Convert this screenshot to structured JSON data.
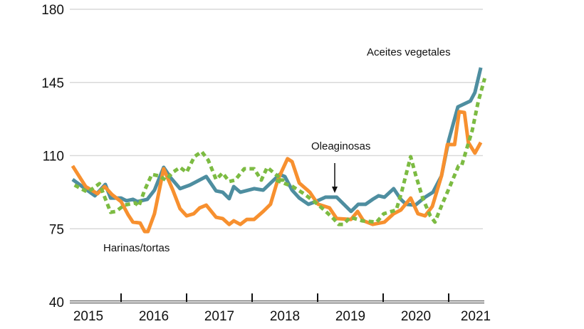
{
  "chart_data": {
    "type": "line",
    "title": "",
    "xlabel": "",
    "ylabel": "",
    "ylim": [
      40,
      180
    ],
    "xlim": [
      2015,
      2021.55
    ],
    "y_ticks": [
      40,
      75,
      110,
      145,
      180
    ],
    "x_tick_labels": [
      "2015",
      "2016",
      "2017",
      "2018",
      "2019",
      "2020",
      "2021"
    ],
    "grid": "horizontal",
    "annotations": {
      "aceites": "Aceites vegetales",
      "oleaginosas": "Oleaginosas",
      "harinas": "Harinas/tortas"
    },
    "series": [
      {
        "name": "Oleaginosas",
        "color": "#4e8ea0",
        "style": "solid",
        "points": [
          [
            2015.26,
            98.6
          ],
          [
            2015.6,
            90.8
          ],
          [
            2015.76,
            96.2
          ],
          [
            2015.84,
            89.7
          ],
          [
            2016.0,
            89.7
          ],
          [
            2016.08,
            88.4
          ],
          [
            2016.18,
            89.1
          ],
          [
            2016.25,
            88.0
          ],
          [
            2016.4,
            89.1
          ],
          [
            2016.51,
            93.5
          ],
          [
            2016.65,
            104.4
          ],
          [
            2016.76,
            99.3
          ],
          [
            2016.9,
            94.2
          ],
          [
            2017.05,
            95.9
          ],
          [
            2017.3,
            100.0
          ],
          [
            2017.45,
            93.1
          ],
          [
            2017.55,
            92.5
          ],
          [
            2017.65,
            89.4
          ],
          [
            2017.72,
            95.2
          ],
          [
            2017.82,
            92.5
          ],
          [
            2018.03,
            94.2
          ],
          [
            2018.17,
            93.5
          ],
          [
            2018.42,
            101.0
          ],
          [
            2018.5,
            100.0
          ],
          [
            2018.61,
            93.5
          ],
          [
            2018.72,
            89.7
          ],
          [
            2018.86,
            86.7
          ],
          [
            2018.97,
            88.0
          ],
          [
            2019.12,
            90.1
          ],
          [
            2019.29,
            90.1
          ],
          [
            2019.51,
            83.3
          ],
          [
            2019.62,
            86.7
          ],
          [
            2019.73,
            86.7
          ],
          [
            2019.84,
            89.1
          ],
          [
            2019.93,
            90.8
          ],
          [
            2020.02,
            90.1
          ],
          [
            2020.16,
            94.2
          ],
          [
            2020.27,
            89.1
          ],
          [
            2020.35,
            86.7
          ],
          [
            2020.49,
            86.3
          ],
          [
            2020.64,
            90.1
          ],
          [
            2020.76,
            92.5
          ],
          [
            2020.89,
            100.3
          ],
          [
            2021.0,
            117.3
          ],
          [
            2021.14,
            133.3
          ],
          [
            2021.33,
            136.1
          ],
          [
            2021.4,
            140.2
          ],
          [
            2021.49,
            152.1
          ]
        ]
      },
      {
        "name": "Harinas/tortas",
        "color": "#f7902f",
        "style": "solid",
        "points": [
          [
            2015.26,
            105.1
          ],
          [
            2015.46,
            95.2
          ],
          [
            2015.64,
            91.8
          ],
          [
            2015.75,
            95.2
          ],
          [
            2015.86,
            91.4
          ],
          [
            2016.0,
            88.0
          ],
          [
            2016.11,
            81.6
          ],
          [
            2016.18,
            78.2
          ],
          [
            2016.29,
            77.8
          ],
          [
            2016.36,
            73.7
          ],
          [
            2016.41,
            73.7
          ],
          [
            2016.51,
            82.2
          ],
          [
            2016.65,
            103.7
          ],
          [
            2016.79,
            93.5
          ],
          [
            2016.9,
            84.6
          ],
          [
            2017.0,
            81.2
          ],
          [
            2017.11,
            82.2
          ],
          [
            2017.2,
            85.0
          ],
          [
            2017.3,
            86.3
          ],
          [
            2017.45,
            80.5
          ],
          [
            2017.55,
            79.9
          ],
          [
            2017.65,
            77.1
          ],
          [
            2017.72,
            78.8
          ],
          [
            2017.82,
            77.1
          ],
          [
            2017.92,
            79.5
          ],
          [
            2018.03,
            79.5
          ],
          [
            2018.17,
            83.3
          ],
          [
            2018.28,
            86.7
          ],
          [
            2018.39,
            98.3
          ],
          [
            2018.54,
            108.5
          ],
          [
            2018.61,
            107.1
          ],
          [
            2018.72,
            96.9
          ],
          [
            2018.88,
            92.5
          ],
          [
            2018.99,
            87.4
          ],
          [
            2019.01,
            86.7
          ],
          [
            2019.18,
            85.0
          ],
          [
            2019.29,
            79.9
          ],
          [
            2019.51,
            79.5
          ],
          [
            2019.61,
            83.3
          ],
          [
            2019.7,
            78.8
          ],
          [
            2019.84,
            77.1
          ],
          [
            2020.02,
            78.2
          ],
          [
            2020.16,
            82.2
          ],
          [
            2020.27,
            84.0
          ],
          [
            2020.42,
            89.7
          ],
          [
            2020.53,
            82.2
          ],
          [
            2020.64,
            81.2
          ],
          [
            2020.75,
            85.7
          ],
          [
            2020.89,
            100.3
          ],
          [
            2020.98,
            115.3
          ],
          [
            2021.09,
            115.3
          ],
          [
            2021.16,
            131.0
          ],
          [
            2021.24,
            130.6
          ],
          [
            2021.3,
            116.3
          ],
          [
            2021.4,
            111.2
          ],
          [
            2021.49,
            116.3
          ]
        ]
      },
      {
        "name": "Aceites vegetales",
        "color": "#7cbb42",
        "style": "dotted",
        "points": [
          [
            2015.29,
            95.9
          ],
          [
            2015.49,
            92.5
          ],
          [
            2015.67,
            96.6
          ],
          [
            2015.84,
            82.9
          ],
          [
            2015.92,
            83.3
          ],
          [
            2016.05,
            86.3
          ],
          [
            2016.22,
            87.4
          ],
          [
            2016.27,
            85.7
          ],
          [
            2016.36,
            93.5
          ],
          [
            2016.47,
            101.0
          ],
          [
            2016.58,
            100.3
          ],
          [
            2016.68,
            98.3
          ],
          [
            2016.79,
            102.0
          ],
          [
            2016.9,
            104.4
          ],
          [
            2017.0,
            102.0
          ],
          [
            2017.12,
            109.5
          ],
          [
            2017.23,
            111.9
          ],
          [
            2017.33,
            107.8
          ],
          [
            2017.45,
            98.6
          ],
          [
            2017.55,
            101.7
          ],
          [
            2017.65,
            97.6
          ],
          [
            2017.74,
            98.3
          ],
          [
            2017.88,
            103.7
          ],
          [
            2018.03,
            103.7
          ],
          [
            2018.14,
            98.3
          ],
          [
            2018.23,
            104.4
          ],
          [
            2018.36,
            101.0
          ],
          [
            2018.47,
            98.3
          ],
          [
            2018.36,
            98.3
          ],
          [
            2018.62,
            95.2
          ],
          [
            2018.79,
            91.8
          ],
          [
            2018.95,
            88.0
          ],
          [
            2019.1,
            84.0
          ],
          [
            2019.24,
            79.9
          ],
          [
            2019.32,
            77.1
          ],
          [
            2019.39,
            77.1
          ],
          [
            2019.5,
            80.5
          ],
          [
            2019.68,
            78.8
          ],
          [
            2019.9,
            78.2
          ],
          [
            2020.01,
            82.2
          ],
          [
            2020.2,
            84.0
          ],
          [
            2020.28,
            92.5
          ],
          [
            2020.42,
            109.5
          ],
          [
            2020.5,
            100.3
          ],
          [
            2020.61,
            89.1
          ],
          [
            2020.72,
            81.2
          ],
          [
            2020.79,
            78.2
          ],
          [
            2020.9,
            86.7
          ],
          [
            2021.04,
            96.9
          ],
          [
            2021.15,
            105.1
          ],
          [
            2021.2,
            105.4
          ],
          [
            2021.36,
            122.1
          ],
          [
            2021.45,
            135.7
          ],
          [
            2021.55,
            147.0
          ]
        ]
      }
    ]
  }
}
